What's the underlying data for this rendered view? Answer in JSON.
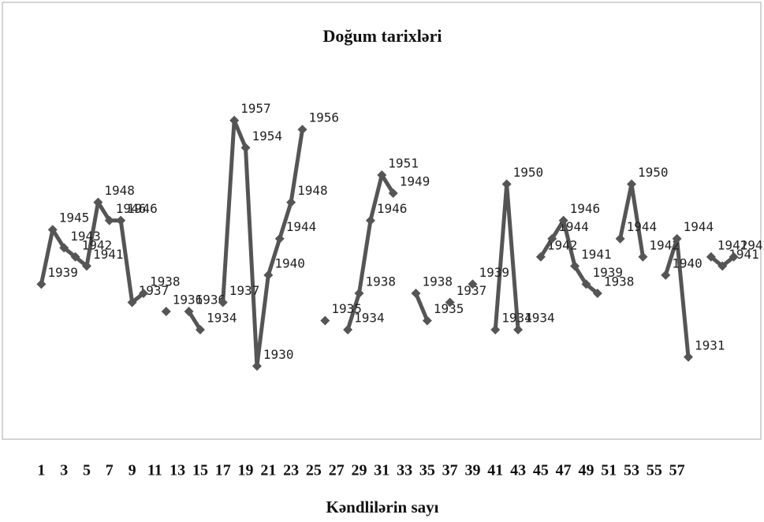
{
  "chart_data": {
    "type": "line",
    "title": "Doğum tarixləri",
    "x_label": "Kəndlilərin sayı",
    "x": [
      1,
      2,
      3,
      4,
      5,
      6,
      7,
      8,
      9,
      10,
      11,
      12,
      13,
      14,
      15,
      16,
      17,
      18,
      19,
      20,
      21,
      22,
      23,
      24,
      25,
      26,
      27,
      28,
      29,
      30,
      31,
      32,
      33,
      34,
      35,
      36,
      37,
      38,
      39,
      40,
      41,
      42,
      43,
      44,
      45,
      46,
      47,
      48,
      49,
      50,
      51,
      52,
      53,
      54,
      55,
      56,
      57,
      58,
      59,
      60,
      61,
      62
    ],
    "values": [
      1939,
      1945,
      1943,
      1942,
      1941,
      1948,
      1946,
      1946,
      1937,
      1938,
      null,
      1936,
      null,
      1936,
      1934,
      null,
      1937,
      1957,
      1954,
      1930,
      1940,
      1944,
      1948,
      1956,
      null,
      1935,
      null,
      1934,
      1938,
      1946,
      1951,
      1949,
      null,
      1938,
      1935,
      null,
      1937,
      null,
      1939,
      null,
      1934,
      1950,
      1934,
      null,
      1942,
      1944,
      1946,
      1941,
      1939,
      1938,
      null,
      1944,
      1950,
      1942,
      null,
      1940,
      1944,
      1931,
      null,
      1942,
      1941,
      1942
    ],
    "color": "#555555",
    "xlim": [
      0,
      63
    ],
    "xticks": [
      1,
      3,
      5,
      7,
      9,
      11,
      13,
      15,
      17,
      19,
      21,
      23,
      25,
      27,
      29,
      31,
      33,
      35,
      37,
      39,
      41,
      43,
      45,
      47,
      49,
      51,
      53,
      55,
      57
    ],
    "ylim": [
      1925,
      1962
    ]
  }
}
